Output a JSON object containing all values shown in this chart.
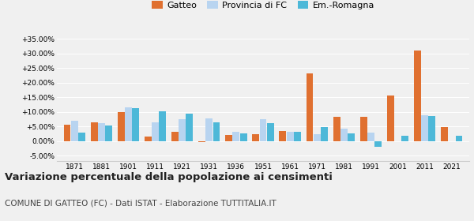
{
  "years": [
    1871,
    1881,
    1901,
    1911,
    1921,
    1931,
    1936,
    1951,
    1961,
    1971,
    1981,
    1991,
    2001,
    2011,
    2021
  ],
  "gatteo": [
    5.5,
    6.5,
    9.8,
    1.5,
    3.0,
    -0.5,
    2.0,
    2.2,
    3.3,
    23.3,
    8.3,
    8.3,
    15.5,
    31.0,
    4.7
  ],
  "provincia": [
    7.0,
    6.0,
    11.5,
    6.5,
    7.5,
    7.8,
    3.2,
    7.5,
    3.2,
    2.3,
    4.2,
    2.8,
    0.0,
    8.8,
    0.0
  ],
  "emromagna": [
    2.8,
    5.2,
    11.2,
    10.3,
    9.3,
    6.3,
    2.6,
    6.1,
    3.2,
    4.7,
    2.7,
    -2.1,
    1.7,
    8.5,
    1.7
  ],
  "gatteo_color": "#e07030",
  "provincia_color": "#b8d4f0",
  "emromagna_color": "#4db8d8",
  "title": "Variazione percentuale della popolazione ai censimenti",
  "subtitle": "COMUNE DI GATTEO (FC) - Dati ISTAT - Elaborazione TUTTITALIA.IT",
  "ytick_vals": [
    -5,
    0,
    5,
    10,
    15,
    20,
    25,
    30,
    35
  ],
  "ytick_labels": [
    "-5.00%",
    "0.00%",
    "+5.00%",
    "+10.00%",
    "+15.00%",
    "+20.00%",
    "+25.00%",
    "+30.00%",
    "+35.00%"
  ],
  "ylim": [
    -7,
    37
  ],
  "legend_labels": [
    "Gatteo",
    "Provincia di FC",
    "Em.-Romagna"
  ],
  "bg_color": "#f0f0f0"
}
